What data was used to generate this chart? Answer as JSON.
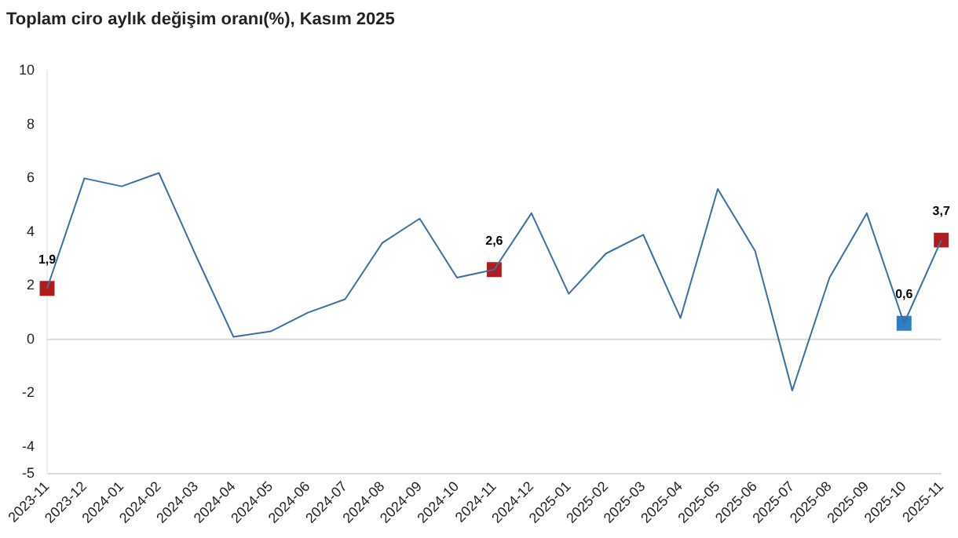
{
  "chart_data": {
    "type": "line",
    "title": "Toplam ciro aylık değişim oranı(%), Kasım 2025",
    "categories": [
      "2023-11",
      "2023-12",
      "2024-01",
      "2024-02",
      "2024-03",
      "2024-04",
      "2024-05",
      "2024-06",
      "2024-07",
      "2024-08",
      "2024-09",
      "2024-10",
      "2024-11",
      "2024-12",
      "2025-01",
      "2025-02",
      "2025-03",
      "2025-04",
      "2025-05",
      "2025-06",
      "2025-07",
      "2025-08",
      "2025-09",
      "2025-10",
      "2025-11"
    ],
    "series": [
      {
        "color": "#3a6ea5",
        "marker": "none",
        "values": [
          1.9,
          6.0,
          5.7,
          6.2,
          3.1,
          0.1,
          0.3,
          1.0,
          1.5,
          3.6,
          4.5,
          2.3,
          2.6,
          4.7,
          1.7,
          3.2,
          3.9,
          0.8,
          5.6,
          3.3,
          -1.9,
          2.3,
          4.7,
          0.6,
          3.7
        ]
      },
      {
        "type": "scatter",
        "marker": "square",
        "values": [
          1.9,
          null,
          null,
          null,
          null,
          null,
          null,
          null,
          null,
          null,
          null,
          null,
          2.6,
          null,
          null,
          null,
          null,
          null,
          null,
          null,
          null,
          null,
          null,
          0.6,
          3.7
        ],
        "colors": [
          "#b01c1c",
          null,
          null,
          null,
          null,
          null,
          null,
          null,
          null,
          null,
          null,
          null,
          "#b01c1c",
          null,
          null,
          null,
          null,
          null,
          null,
          null,
          null,
          null,
          null,
          "#2e7fc0",
          "#b01c1c"
        ],
        "value_labels": [
          "1,9",
          null,
          null,
          null,
          null,
          null,
          null,
          null,
          null,
          null,
          null,
          null,
          "2,6",
          null,
          null,
          null,
          null,
          null,
          null,
          null,
          null,
          null,
          null,
          "0,6",
          "3,7"
        ]
      }
    ],
    "ylim": [
      -5,
      10
    ],
    "yticks": [
      -5,
      -4,
      -2,
      0,
      2,
      4,
      6,
      8,
      10
    ],
    "grid": false,
    "ref_lines": [
      {
        "axis": "y",
        "value": 0,
        "color": "#d9d9d9"
      }
    ],
    "legend": false
  }
}
